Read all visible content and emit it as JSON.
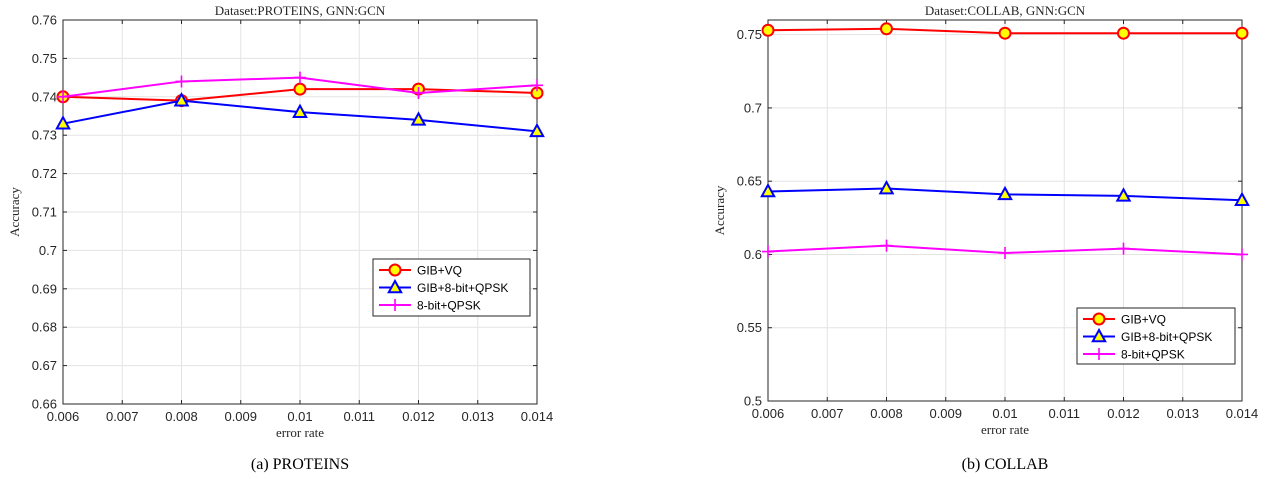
{
  "chart_data": [
    {
      "type": "line",
      "title": "Dataset:PROTEINS, GNN:GCN",
      "xlabel": "error rate",
      "ylabel": "Accuracy",
      "caption": "(a) PROTEINS",
      "x": [
        0.006,
        0.008,
        0.01,
        0.012,
        0.014
      ],
      "xlim": [
        0.006,
        0.014
      ],
      "ylim": [
        0.66,
        0.76
      ],
      "xticks": [
        "0.006",
        "0.007",
        "0.008",
        "0.009",
        "0.01",
        "0.011",
        "0.012",
        "0.013",
        "0.014"
      ],
      "yticks": [
        "0.66",
        "0.67",
        "0.68",
        "0.69",
        "0.7",
        "0.71",
        "0.72",
        "0.73",
        "0.74",
        "0.75",
        "0.76"
      ],
      "grid": true,
      "legend_position": "center-right",
      "series": [
        {
          "name": "GIB+VQ",
          "color": "#ff0000",
          "marker": "circle",
          "marker_fill": "#ffff00",
          "values": [
            0.74,
            0.739,
            0.742,
            0.742,
            0.741
          ]
        },
        {
          "name": "GIB+8-bit+QPSK",
          "color": "#0000ff",
          "marker": "triangle",
          "marker_fill": "#ffff00",
          "values": [
            0.733,
            0.739,
            0.736,
            0.734,
            0.731
          ]
        },
        {
          "name": "8-bit+QPSK",
          "color": "#ff00ff",
          "marker": "plus",
          "marker_fill": "",
          "values": [
            0.74,
            0.744,
            0.745,
            0.741,
            0.743
          ]
        }
      ]
    },
    {
      "type": "line",
      "title": "Dataset:COLLAB, GNN:GCN",
      "xlabel": "error rate",
      "ylabel": "Accuracy",
      "caption": "(b) COLLAB",
      "x": [
        0.006,
        0.008,
        0.01,
        0.012,
        0.014
      ],
      "xlim": [
        0.006,
        0.014
      ],
      "ylim": [
        0.5,
        0.76
      ],
      "xticks": [
        "0.006",
        "0.007",
        "0.008",
        "0.009",
        "0.01",
        "0.011",
        "0.012",
        "0.013",
        "0.014"
      ],
      "yticks": [
        "0.5",
        "0.55",
        "0.6",
        "0.65",
        "0.7",
        "0.75"
      ],
      "grid": true,
      "legend_position": "bottom-right",
      "series": [
        {
          "name": "GIB+VQ",
          "color": "#ff0000",
          "marker": "circle",
          "marker_fill": "#ffff00",
          "values": [
            0.753,
            0.754,
            0.751,
            0.751,
            0.751
          ]
        },
        {
          "name": "GIB+8-bit+QPSK",
          "color": "#0000ff",
          "marker": "triangle",
          "marker_fill": "#ffff00",
          "values": [
            0.643,
            0.645,
            0.641,
            0.64,
            0.637
          ]
        },
        {
          "name": "8-bit+QPSK",
          "color": "#ff00ff",
          "marker": "plus",
          "marker_fill": "",
          "values": [
            0.602,
            0.606,
            0.601,
            0.604,
            0.6
          ]
        }
      ]
    }
  ]
}
